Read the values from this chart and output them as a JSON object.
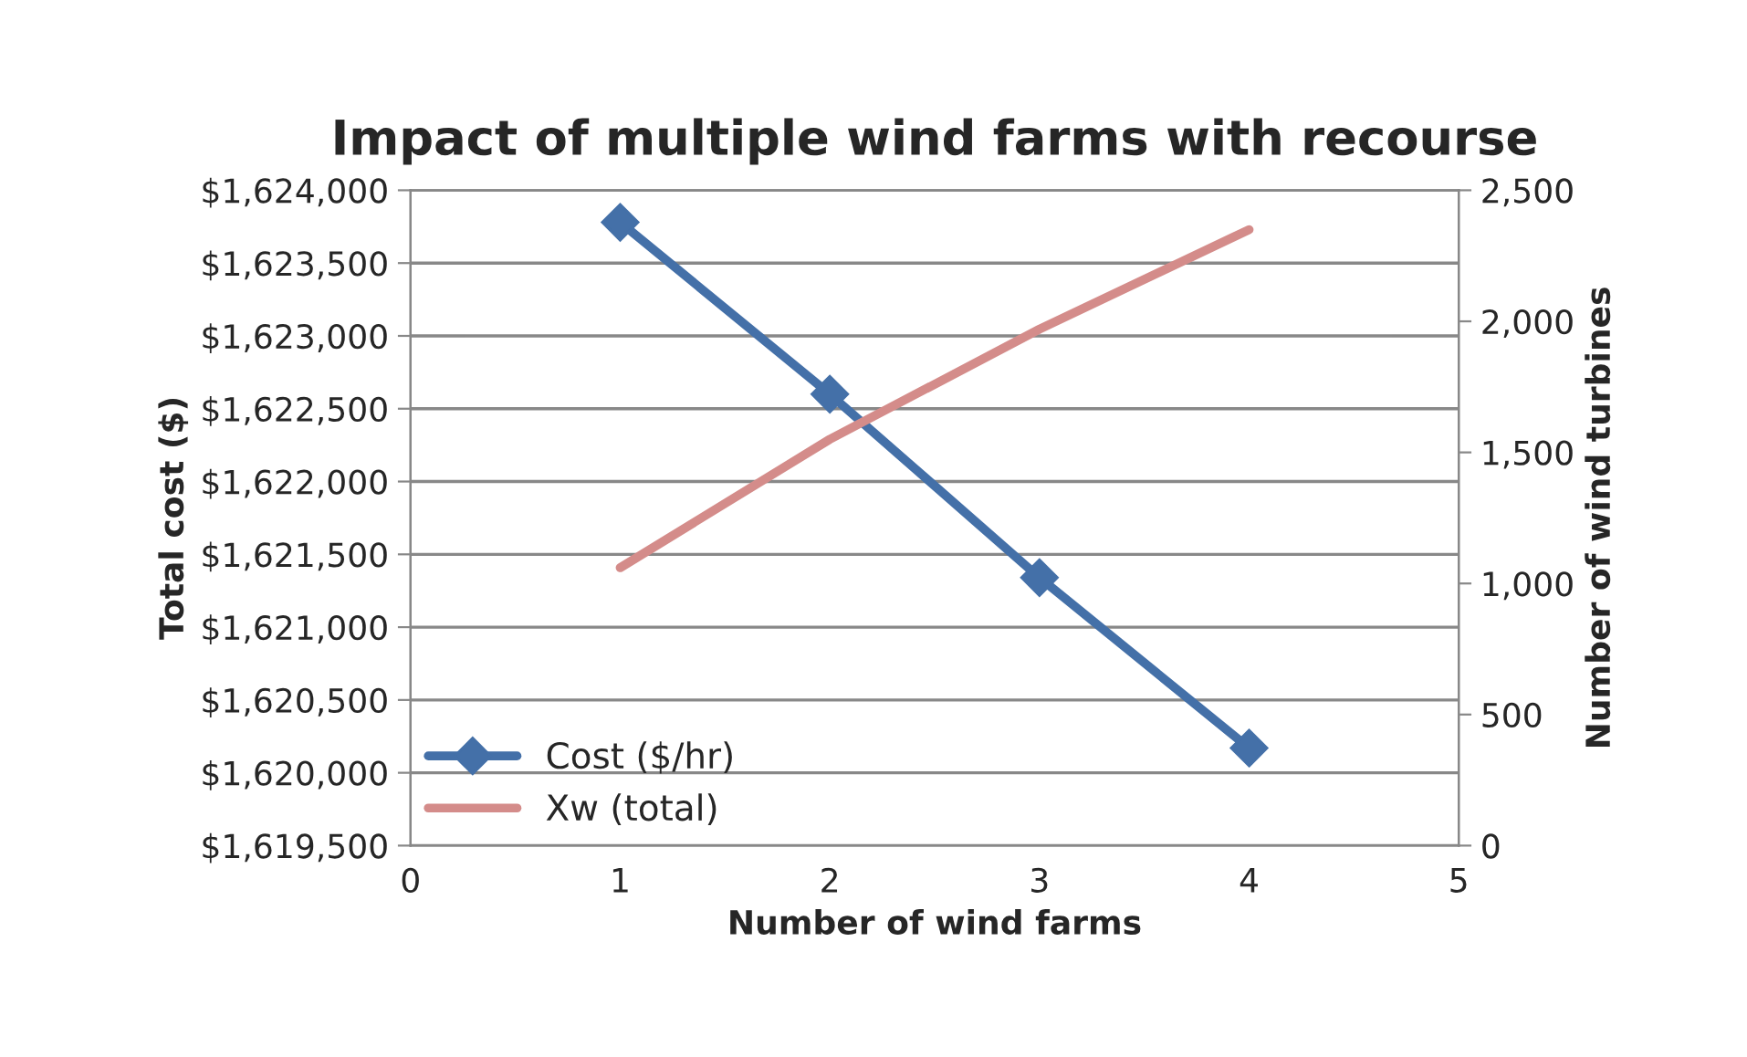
{
  "chart_data": {
    "type": "line",
    "title": "Impact of multiple wind farms with recourse",
    "xlabel": "Number of wind farms",
    "ylabel": "Total cost ($)",
    "y2label": "Number of wind turbines",
    "x": [
      1,
      2,
      3,
      4
    ],
    "series": [
      {
        "name": "Cost ($/hr)",
        "color": "#4470a8",
        "values": [
          1623780,
          1622600,
          1621340,
          1620170
        ],
        "marker": "diamond"
      },
      {
        "name": "Xw (total)",
        "color": "#d48c8a",
        "values": [
          1060,
          1550,
          1970,
          2350
        ],
        "axis": "y2",
        "marker": "none"
      }
    ],
    "xlim": [
      0,
      5
    ],
    "xticks": [
      0,
      1,
      2,
      3,
      4,
      5
    ],
    "ylim": [
      1619500,
      1624000
    ],
    "yticks": [
      {
        "value": 1619500,
        "label": "$1,619,500"
      },
      {
        "value": 1620000,
        "label": "$1,620,000"
      },
      {
        "value": 1620500,
        "label": "$1,620,500"
      },
      {
        "value": 1621000,
        "label": "$1,621,000"
      },
      {
        "value": 1621500,
        "label": "$1,621,500"
      },
      {
        "value": 1622000,
        "label": "$1,622,000"
      },
      {
        "value": 1622500,
        "label": "$1,622,500"
      },
      {
        "value": 1623000,
        "label": "$1,623,000"
      },
      {
        "value": 1623500,
        "label": "$1,623,500"
      },
      {
        "value": 1624000,
        "label": "$1,624,000"
      }
    ],
    "y2lim": [
      0,
      2500
    ],
    "y2ticks": [
      0,
      {
        "value": 500,
        "label": "500"
      },
      {
        "value": 1000,
        "label": "1,000"
      },
      {
        "value": 1500,
        "label": "1,500"
      },
      {
        "value": 2000,
        "label": "2,000"
      },
      {
        "value": 2500,
        "label": "2,500"
      }
    ],
    "grid": "y",
    "legend": "bottom left",
    "line_style": "solid"
  }
}
